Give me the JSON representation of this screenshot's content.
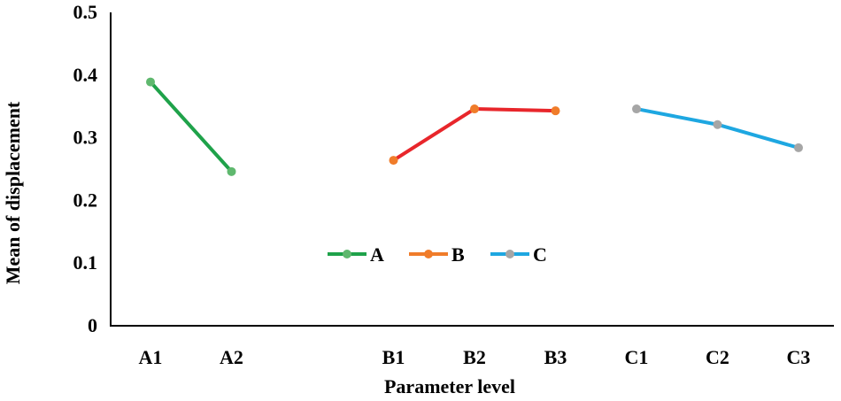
{
  "chart_data": {
    "type": "line",
    "title": "",
    "xlabel": "Parameter level",
    "ylabel": "Mean of displacement",
    "ylim": [
      0,
      0.5
    ],
    "y_ticks": [
      "0",
      "0.1",
      "0.2",
      "0.3",
      "0.4",
      "0.5"
    ],
    "categories": [
      "A1",
      "A2",
      "",
      "B1",
      "B2",
      "B3",
      "C1",
      "C2",
      "C3"
    ],
    "grid": false,
    "legend_position": "center",
    "series": [
      {
        "name": "A",
        "line_color": "#1fa24a",
        "marker_color": "#5fb86e",
        "points": [
          {
            "x": "A1",
            "y": 0.389
          },
          {
            "x": "A2",
            "y": 0.246
          }
        ]
      },
      {
        "name": "B",
        "line_color": "#e8262b",
        "marker_color": "#f07c2a",
        "points": [
          {
            "x": "B1",
            "y": 0.264
          },
          {
            "x": "B2",
            "y": 0.346
          },
          {
            "x": "B3",
            "y": 0.343
          }
        ]
      },
      {
        "name": "C",
        "line_color": "#1ea7e1",
        "marker_color": "#a6a6a6",
        "points": [
          {
            "x": "C1",
            "y": 0.346
          },
          {
            "x": "C2",
            "y": 0.321
          },
          {
            "x": "C3",
            "y": 0.284
          }
        ]
      }
    ],
    "legend": [
      {
        "name": "A",
        "line_color": "#1fa24a",
        "marker_color": "#5fb86e"
      },
      {
        "name": "B",
        "line_color": "#f07c2a",
        "marker_color": "#f07c2a"
      },
      {
        "name": "C",
        "line_color": "#1ea7e1",
        "marker_color": "#a6a6a6"
      }
    ]
  }
}
